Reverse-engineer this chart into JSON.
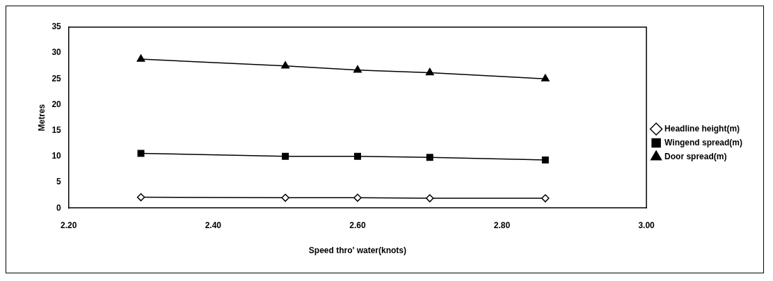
{
  "chart_data": {
    "type": "line",
    "xlabel": "Speed thro' water(knots)",
    "ylabel": "Metres",
    "xlim": [
      2.2,
      3.0
    ],
    "xticks": [
      {
        "value": 2.2,
        "label": "2.20"
      },
      {
        "value": 2.4,
        "label": "2.40"
      },
      {
        "value": 2.6,
        "label": "2.60"
      },
      {
        "value": 2.8,
        "label": "2.80"
      },
      {
        "value": 3.0,
        "label": "3.00"
      }
    ],
    "ylim": [
      0,
      35
    ],
    "yticks": [
      0,
      5,
      10,
      15,
      20,
      25,
      30,
      35
    ],
    "x": [
      2.3,
      2.5,
      2.6,
      2.7,
      2.86
    ],
    "series": [
      {
        "name": "Headline height(m)",
        "color": "#000000",
        "marker": "diamond",
        "values": [
          2.1,
          2.0,
          2.0,
          1.9,
          1.9
        ]
      },
      {
        "name": "Wingend spread(m)",
        "color": "#000000",
        "marker": "square",
        "values": [
          10.6,
          10.0,
          10.0,
          9.8,
          9.3
        ]
      },
      {
        "name": "Door spread(m)",
        "color": "#000000",
        "marker": "triangle",
        "values": [
          28.8,
          27.5,
          26.7,
          26.2,
          25.0
        ]
      }
    ],
    "grid": false,
    "legend": "right",
    "line_style": "solid"
  }
}
